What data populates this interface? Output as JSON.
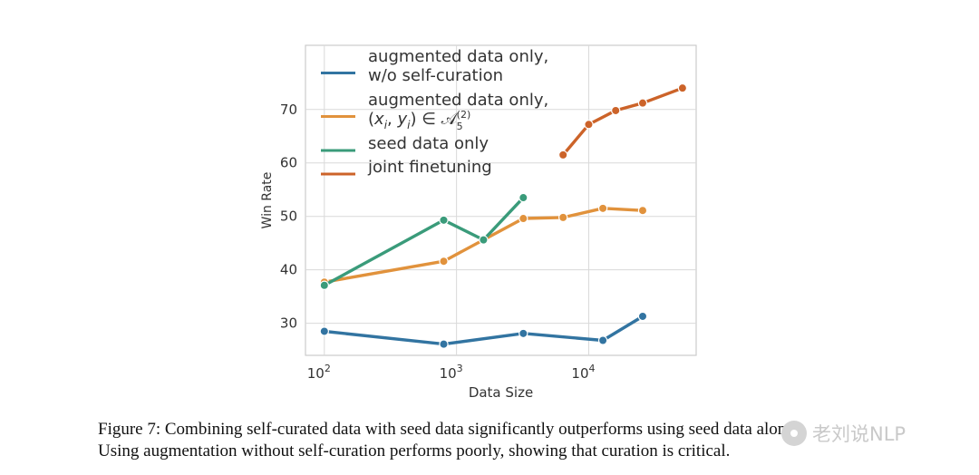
{
  "chart_data": {
    "type": "line",
    "xlabel": "Data Size",
    "ylabel": "Win Rate",
    "xscale": "log",
    "xlim": [
      72,
      65000
    ],
    "ylim": [
      24,
      82
    ],
    "yticks": [
      30,
      40,
      50,
      60,
      70
    ],
    "xticks": [
      {
        "value": 100,
        "base": "10",
        "exp": "2"
      },
      {
        "value": 1000,
        "base": "10",
        "exp": "3"
      },
      {
        "value": 10000,
        "base": "10",
        "exp": "4"
      }
    ],
    "grid": true,
    "legend_position": "upper-left",
    "series": [
      {
        "name": "augmented data only, w/o self-curation",
        "legend_lines": [
          "augmented data only,",
          "w/o self-curation"
        ],
        "color": "#3274a1",
        "x": [
          100,
          800,
          3200,
          12800,
          25600
        ],
        "y": [
          28.5,
          26.1,
          28.1,
          26.8,
          31.3
        ]
      },
      {
        "name": "augmented data only, (x_i, y_i) ∈ A_5^(2)",
        "legend_lines": [
          "augmented data only,",
          "(x_i, y_i) ∈ A_5^(2)"
        ],
        "color": "#e1923c",
        "x": [
          100,
          800,
          3200,
          6400,
          12800,
          25600
        ],
        "y": [
          37.7,
          41.6,
          49.6,
          49.8,
          51.5,
          51.1
        ]
      },
      {
        "name": "seed data only",
        "legend_lines": [
          "seed data only"
        ],
        "color": "#3a9b7a",
        "x": [
          100,
          800,
          1600,
          3200
        ],
        "y": [
          37.1,
          49.3,
          45.6,
          53.5
        ]
      },
      {
        "name": "joint finetuning",
        "legend_lines": [
          "joint finetuning"
        ],
        "color": "#cc6329",
        "x": [
          6400,
          10000,
          16000,
          25600,
          51200
        ],
        "y": [
          61.5,
          67.2,
          69.8,
          71.2,
          74.0
        ]
      }
    ]
  },
  "caption": {
    "line1": "Figure 7: Combining self-curated data with seed data significantly outperforms using seed data alone.",
    "line2": "Using augmentation without self-curation performs poorly, showing that curation is critical."
  },
  "watermark": {
    "text": "老刘说NLP"
  }
}
